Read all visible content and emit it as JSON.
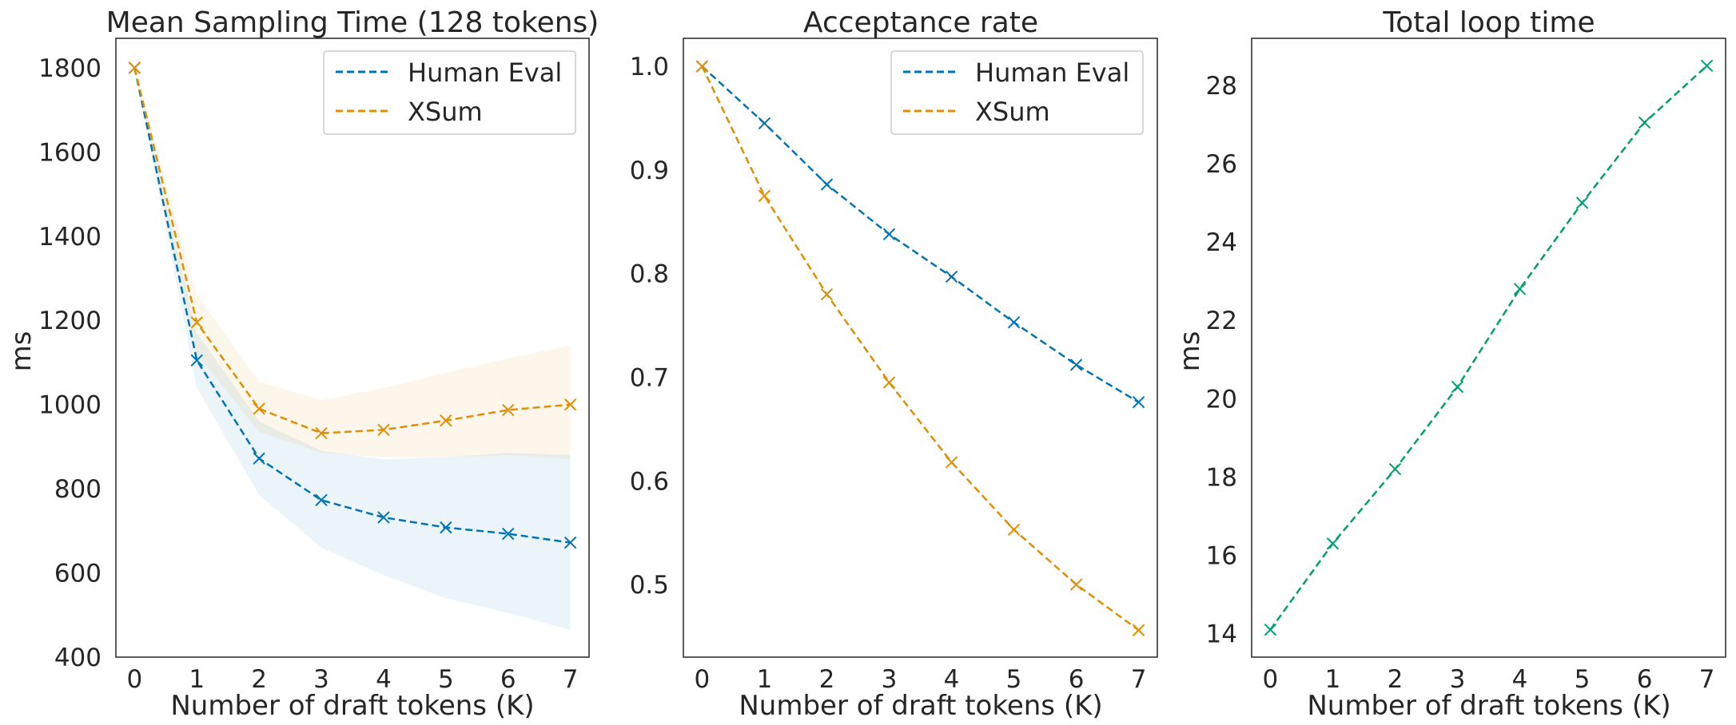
{
  "chart_data": [
    {
      "type": "line",
      "title": "Mean Sampling Time (128 tokens)",
      "xlabel": "Number of draft tokens (K)",
      "ylabel": "ms",
      "x": [
        0,
        1,
        2,
        3,
        4,
        5,
        6,
        7
      ],
      "xticks": [
        "0",
        "1",
        "2",
        "3",
        "4",
        "5",
        "6",
        "7"
      ],
      "xlim": [
        -0.3,
        7.3
      ],
      "ylim": [
        400,
        1870
      ],
      "yticks": [
        "400",
        "600",
        "800",
        "1000",
        "1200",
        "1400",
        "1600",
        "1800"
      ],
      "legend": "upper-right",
      "grid": false,
      "series": [
        {
          "name": "Human Eval",
          "color": "#0173b2",
          "values": [
            1800,
            1105,
            872,
            773,
            732,
            708,
            693,
            672
          ],
          "band_low": [
            1800,
            1040,
            785,
            660,
            595,
            540,
            505,
            465
          ],
          "band_high": [
            1800,
            1170,
            960,
            890,
            870,
            875,
            885,
            880
          ]
        },
        {
          "name": "XSum",
          "color": "#de8f05",
          "values": [
            1800,
            1195,
            990,
            932,
            940,
            962,
            987,
            1000
          ],
          "band_low": [
            1800,
            1120,
            935,
            885,
            875,
            875,
            880,
            870
          ],
          "band_high": [
            1800,
            1260,
            1055,
            1010,
            1040,
            1075,
            1110,
            1140
          ]
        }
      ]
    },
    {
      "type": "line",
      "title": "Acceptance rate",
      "xlabel": "Number of draft tokens (K)",
      "ylabel": "",
      "x": [
        0,
        1,
        2,
        3,
        4,
        5,
        6,
        7
      ],
      "xticks": [
        "0",
        "1",
        "2",
        "3",
        "4",
        "5",
        "6",
        "7"
      ],
      "xlim": [
        -0.3,
        7.3
      ],
      "ylim": [
        0.43,
        1.027
      ],
      "yticks": [
        "0.5",
        "0.6",
        "0.7",
        "0.8",
        "0.9",
        "1.0"
      ],
      "legend": "upper-right",
      "grid": false,
      "series": [
        {
          "name": "Human Eval",
          "color": "#0173b2",
          "values": [
            1.0,
            0.945,
            0.886,
            0.838,
            0.797,
            0.753,
            0.712,
            0.676
          ]
        },
        {
          "name": "XSum",
          "color": "#de8f05",
          "values": [
            1.0,
            0.875,
            0.78,
            0.695,
            0.618,
            0.553,
            0.5,
            0.456
          ]
        }
      ]
    },
    {
      "type": "line",
      "title": "Total loop time",
      "xlabel": "Number of draft tokens (K)",
      "ylabel": "ms",
      "x": [
        0,
        1,
        2,
        3,
        4,
        5,
        6,
        7
      ],
      "xticks": [
        "0",
        "1",
        "2",
        "3",
        "4",
        "5",
        "6",
        "7"
      ],
      "xlim": [
        -0.3,
        7.3
      ],
      "ylim": [
        13.4,
        29.2
      ],
      "yticks": [
        "14",
        "16",
        "18",
        "20",
        "22",
        "24",
        "26",
        "28"
      ],
      "legend": "none",
      "grid": false,
      "series": [
        {
          "color": "#029e73",
          "values": [
            14.1,
            16.3,
            18.2,
            20.3,
            22.8,
            25.0,
            27.05,
            28.5
          ]
        }
      ]
    }
  ]
}
